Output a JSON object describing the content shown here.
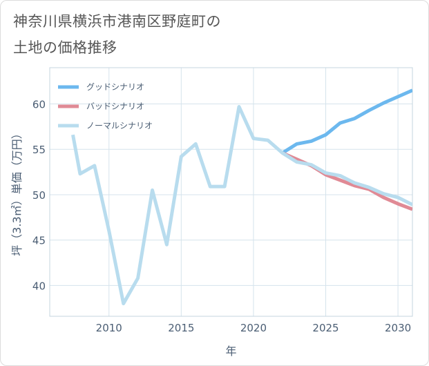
{
  "title": {
    "line1": "神奈川県横浜市港南区野庭町の",
    "line2": "土地の価格推移"
  },
  "chart_data": {
    "type": "line",
    "xlabel": "年",
    "ylabel": "坪（3.3㎡）単価（万円）",
    "xlim": [
      2005.9,
      2031
    ],
    "ylim": [
      36.6,
      64
    ],
    "x_ticks": [
      2010,
      2015,
      2020,
      2025,
      2030
    ],
    "y_ticks": [
      40,
      45,
      50,
      55,
      60
    ],
    "x_tick_labels": [
      "2010",
      "2015",
      "2020",
      "2025",
      "2030"
    ],
    "y_tick_labels": [
      "40",
      "45",
      "50",
      "55",
      "60"
    ],
    "grid": true,
    "legend_position": "top-left",
    "series": [
      {
        "name": "グッドシナリオ",
        "color": "#6cb8ee",
        "x": [
          2022,
          2023,
          2024,
          2025,
          2026,
          2027,
          2028,
          2029,
          2030,
          2031
        ],
        "y": [
          54.6,
          55.6,
          55.9,
          56.6,
          57.9,
          58.4,
          59.3,
          60.1,
          60.8,
          61.5
        ]
      },
      {
        "name": "バッドシナリオ",
        "color": "#e08a95",
        "x": [
          2022,
          2023,
          2024,
          2025,
          2026,
          2027,
          2028,
          2029,
          2030,
          2031
        ],
        "y": [
          54.6,
          53.9,
          53.2,
          52.2,
          51.6,
          51.0,
          50.6,
          49.7,
          49.0,
          48.4
        ]
      },
      {
        "name": "ノーマルシナリオ",
        "color": "#b8dcee",
        "x": [
          2007.5,
          2008,
          2009,
          2010,
          2011,
          2012,
          2013,
          2014,
          2015,
          2016,
          2017,
          2018,
          2019,
          2020,
          2021,
          2022,
          2023,
          2024,
          2025,
          2026,
          2027,
          2028,
          2029,
          2030,
          2031
        ],
        "y": [
          56.6,
          52.3,
          53.2,
          46.0,
          38.0,
          40.8,
          50.5,
          44.5,
          54.2,
          55.6,
          50.9,
          50.9,
          59.7,
          56.2,
          56.0,
          54.6,
          53.6,
          53.3,
          52.4,
          52.1,
          51.3,
          50.8,
          50.1,
          49.7,
          48.9
        ]
      }
    ]
  }
}
